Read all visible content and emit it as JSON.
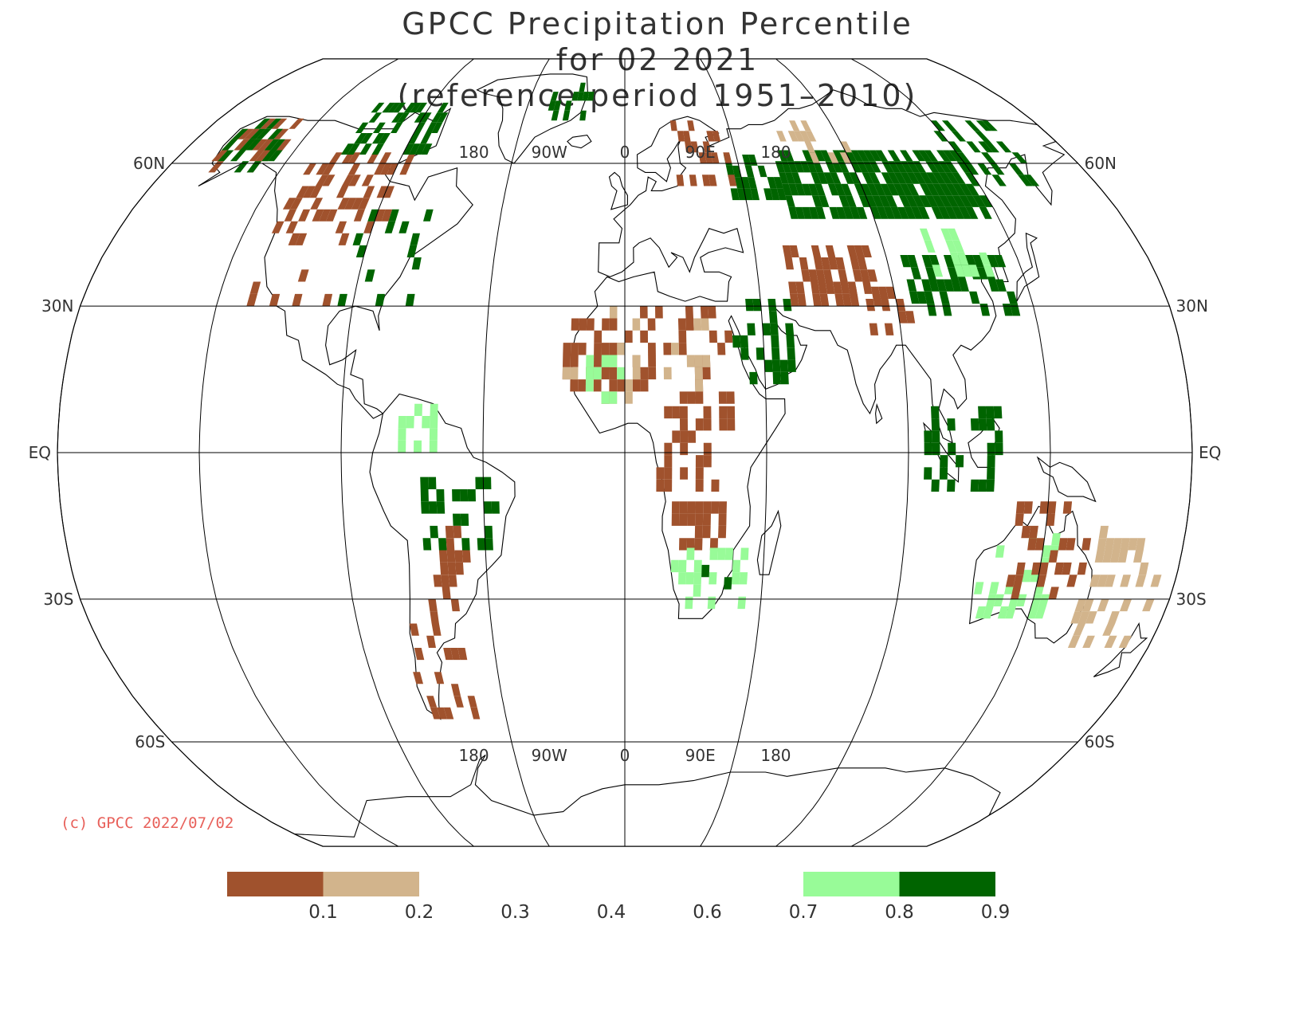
{
  "title": {
    "line1": "GPCC Precipitation Percentile",
    "line2": "for 02 2021",
    "line3": "(reference period 1951–2010)"
  },
  "copyright": "(c) GPCC 2022/07/02",
  "map": {
    "projection": "Robinson",
    "central_longitude": 0,
    "lon_labels_top": [
      "180",
      "90W",
      "0",
      "90E",
      "180"
    ],
    "lon_labels_bottom": [
      "180",
      "90W",
      "0",
      "90E",
      "180"
    ],
    "lat_labels_left": [
      "60N",
      "30N",
      "EQ",
      "30S",
      "60S"
    ],
    "lat_labels_right": [
      "60N",
      "30N",
      "EQ",
      "30S",
      "60S"
    ],
    "parallels_deg": [
      60,
      30,
      0,
      -30,
      -60
    ],
    "meridians_deg": [
      -180,
      -135,
      -90,
      -45,
      0,
      45,
      90,
      135,
      180
    ],
    "colors": {
      "frame": "#000000",
      "coast": "#000000",
      "very_dry": "#a0522d",
      "dry": "#d2b48c",
      "wet": "#98fb98",
      "very_wet": "#006400"
    }
  },
  "legend": {
    "labels": [
      "0.1",
      "0.2",
      "0.3",
      "0.4",
      "0.6",
      "0.7",
      "0.8",
      "0.9"
    ],
    "swatch_colors": [
      "#a0522d",
      "#d2b48c",
      "",
      "",
      "",
      "",
      "#98fb98",
      "#006400"
    ]
  }
}
